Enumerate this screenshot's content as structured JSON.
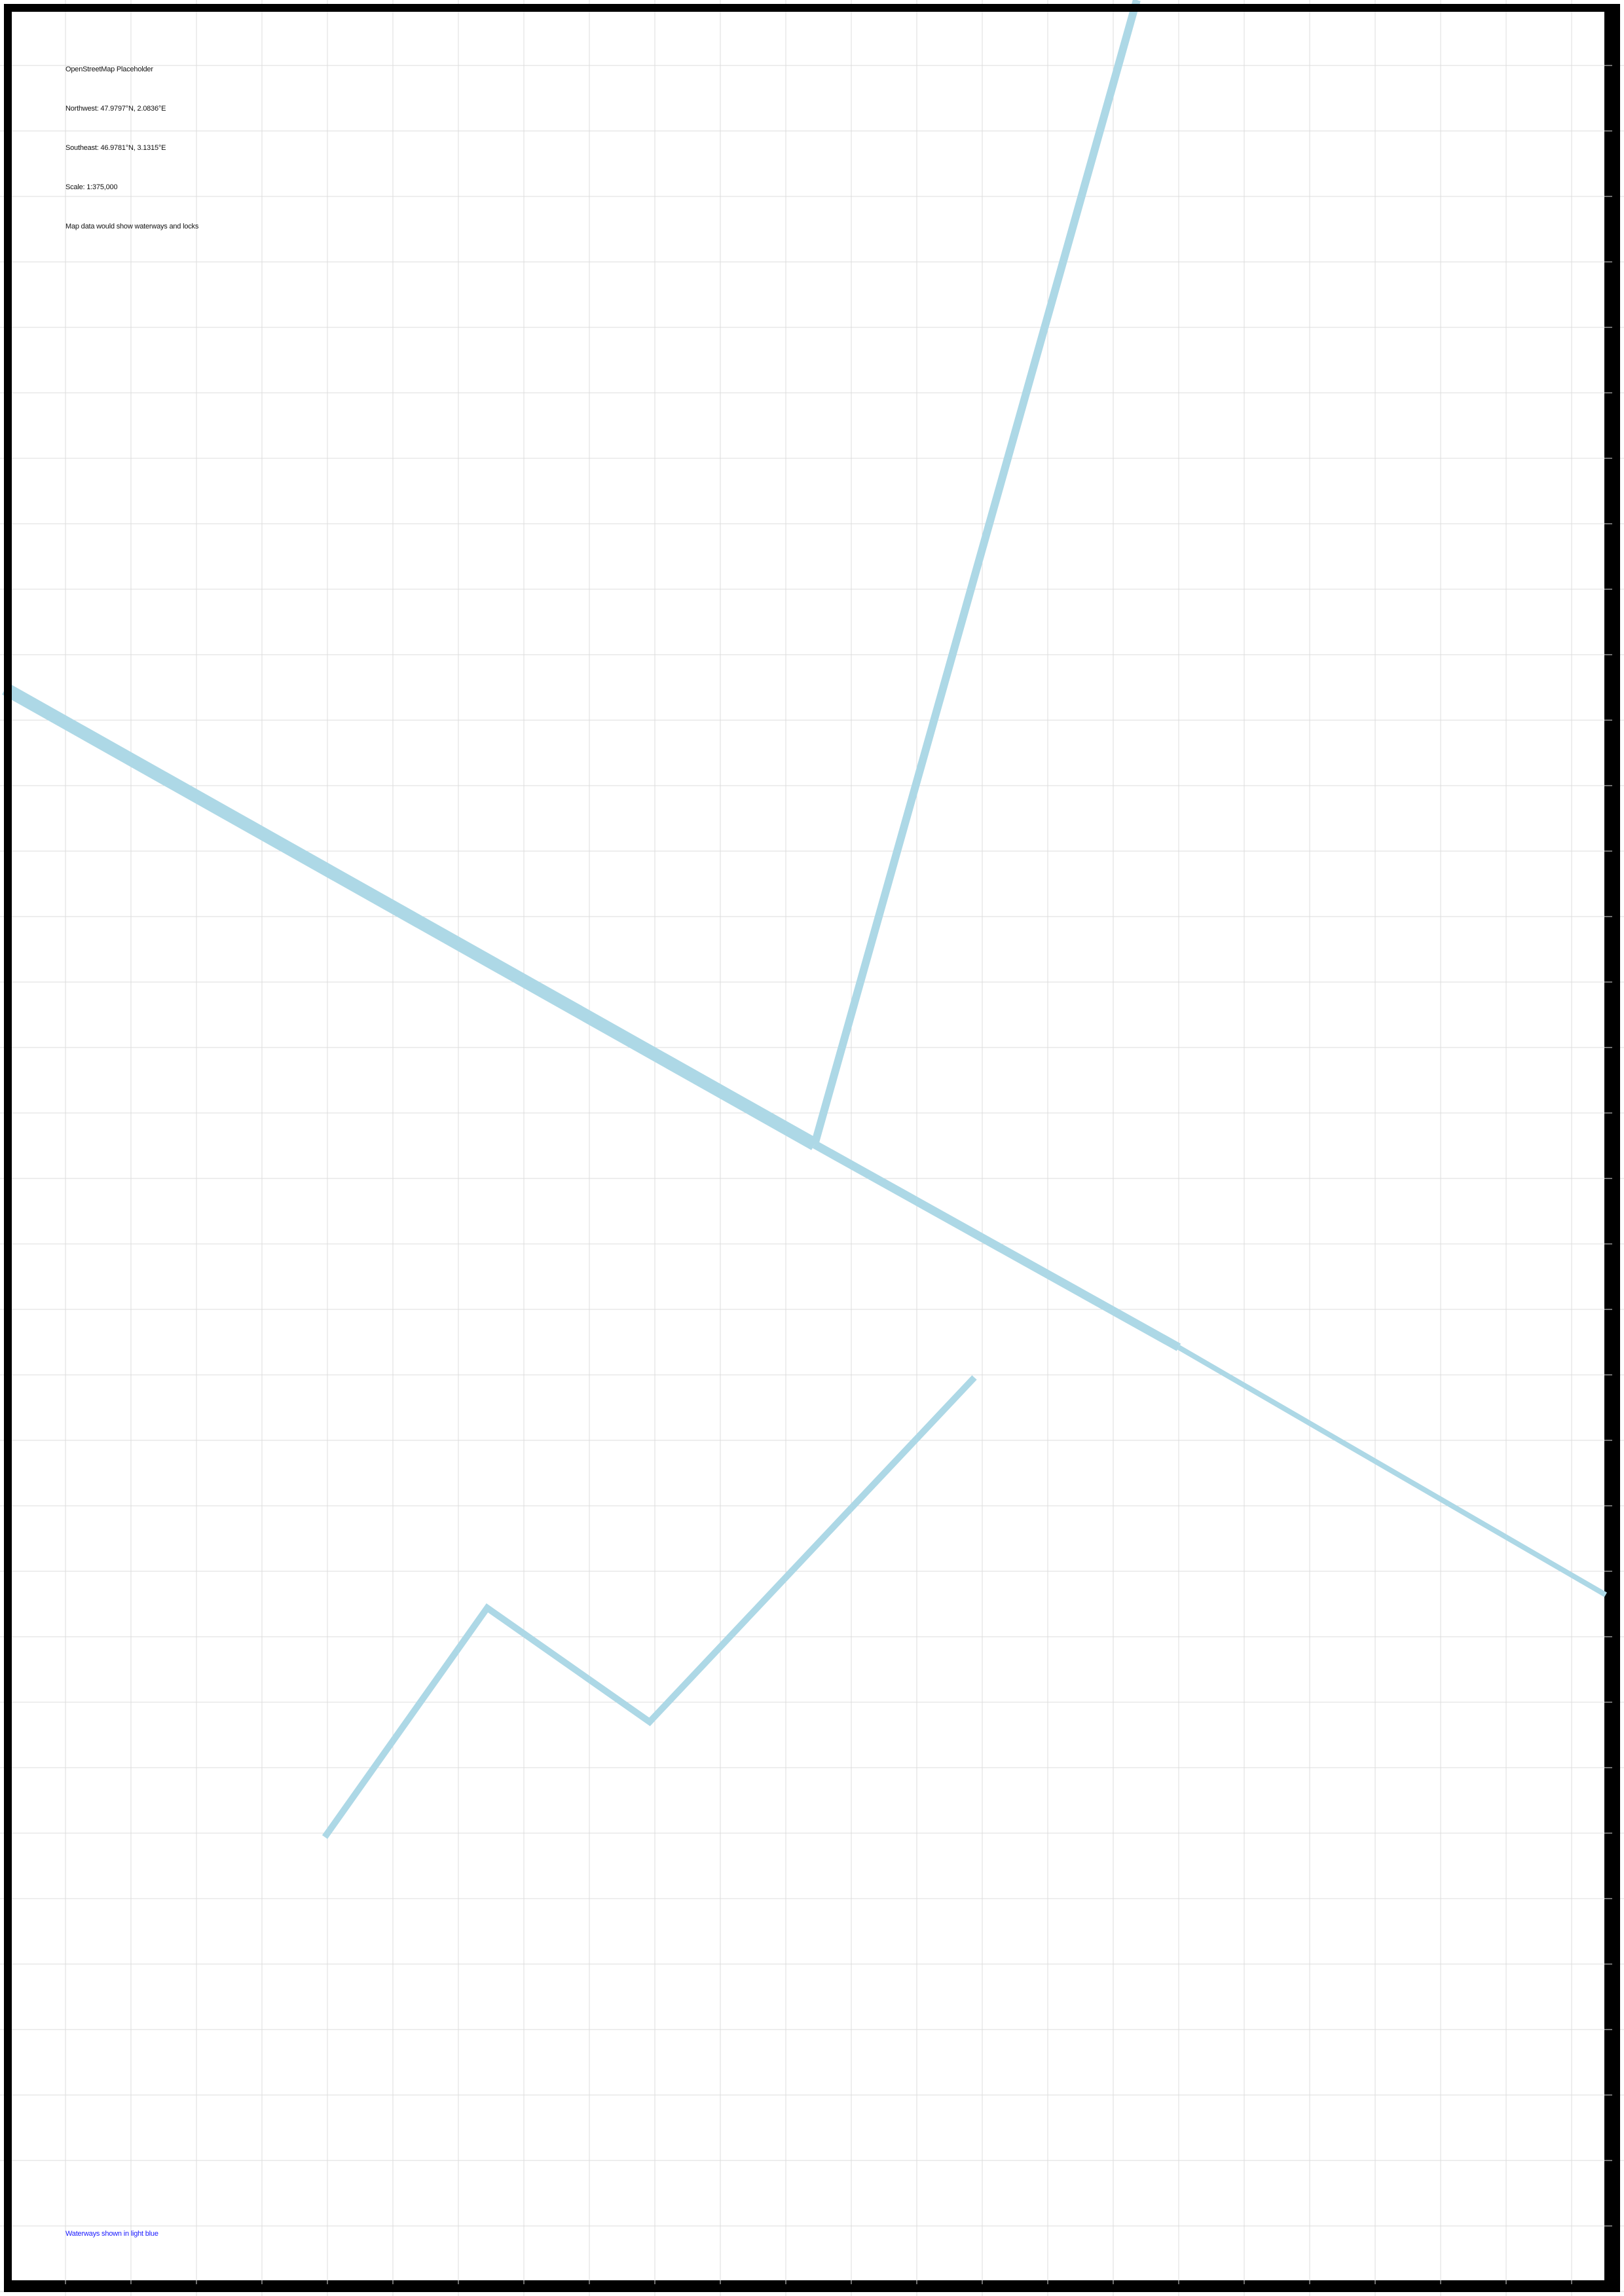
{
  "map": {
    "title": "OpenStreetMap Placeholder",
    "northwest": "Northwest: 47.9797°N, 2.0836°E",
    "southeast": "Southeast: 46.9781°N, 3.1315°E",
    "scale": "Scale: 1:375,000",
    "note": "Map data would show waterways and locks",
    "legend": "Waterways shown in light blue",
    "colors": {
      "background": "#ffffff",
      "grid": "#dcdcdc",
      "waterway": "#add8e6",
      "border": "#000000",
      "legend_text": "#1a1aff"
    }
  }
}
